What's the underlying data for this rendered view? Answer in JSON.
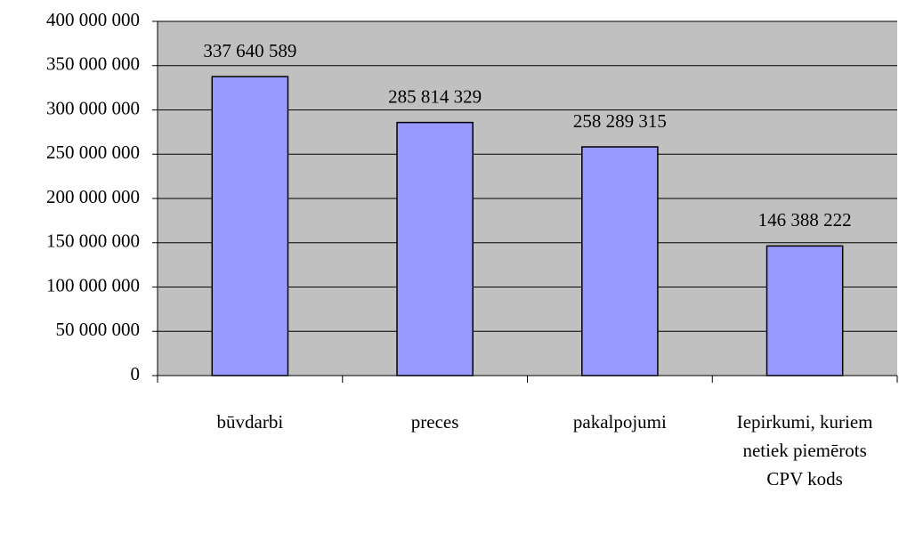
{
  "chart_data": {
    "type": "bar",
    "categories": [
      "būvdarbi",
      "preces",
      "pakalpojumi",
      "Iepirkumi, kuriem netiek piemērots CPV kods"
    ],
    "values": [
      337640589,
      285814329,
      258289315,
      146388222
    ],
    "value_labels": [
      "337 640 589",
      "285 814 329",
      "258 289 315",
      "146 388 222"
    ],
    "color": "#9999ff",
    "ylim": [
      0,
      400000000
    ],
    "yticks": [
      0,
      {
        "value": 50000000,
        "label": "50 000 000"
      },
      {
        "value": 100000000,
        "label": "100 000 000"
      },
      {
        "value": 150000000,
        "label": "150 000 000"
      },
      {
        "value": 200000000,
        "label": "200 000 000"
      },
      {
        "value": 250000000,
        "label": "250 000 000"
      },
      {
        "value": 300000000,
        "label": "300 000 000"
      },
      {
        "value": 350000000,
        "label": "350 000 000"
      },
      {
        "value": 400000000,
        "label": "400 000 000"
      }
    ],
    "grid": true
  }
}
